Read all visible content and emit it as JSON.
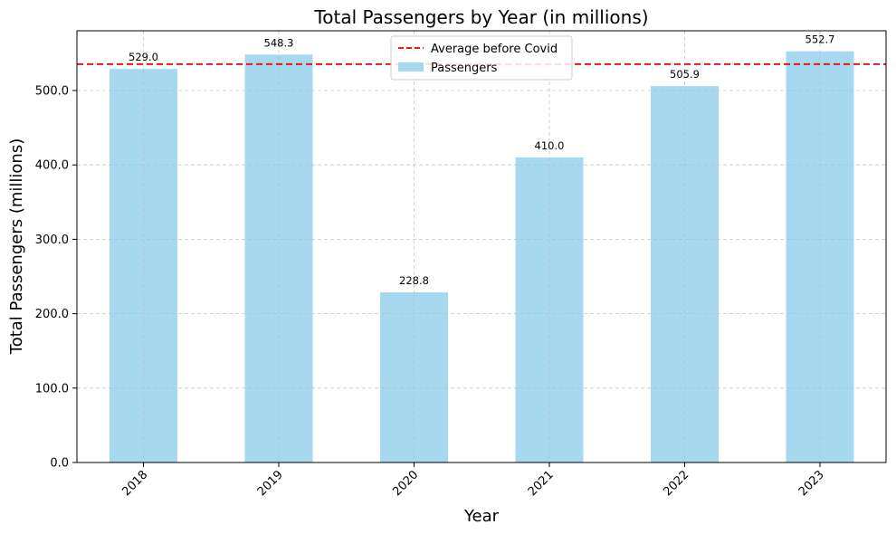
{
  "chart_data": {
    "type": "bar",
    "title": "Total Passengers by Year (in millions)",
    "xlabel": "Year",
    "ylabel": "Total Passengers (millions)",
    "categories": [
      "2018",
      "2019",
      "2020",
      "2021",
      "2022",
      "2023"
    ],
    "values": [
      529.0,
      548.3,
      228.8,
      410.0,
      505.9,
      552.7
    ],
    "value_labels": [
      "529.0",
      "548.3",
      "228.8",
      "410.0",
      "505.9",
      "552.7"
    ],
    "yticks": [
      0,
      100,
      200,
      300,
      400,
      500
    ],
    "ytick_labels": [
      "0.0",
      "100.0",
      "200.0",
      "300.0",
      "400.0",
      "500.0"
    ],
    "ylim": [
      0,
      580.3
    ],
    "grid": true,
    "bar_color": "#a6d9f0",
    "reference_line": {
      "name": "Average before Covid",
      "value": 535.4,
      "color": "#e8170f",
      "style": "dashed"
    },
    "series": [
      {
        "name": "Passengers",
        "color": "#a6d9f0"
      }
    ],
    "legend": {
      "position": "top-center",
      "entries": [
        "Average before Covid",
        "Passengers"
      ]
    }
  }
}
